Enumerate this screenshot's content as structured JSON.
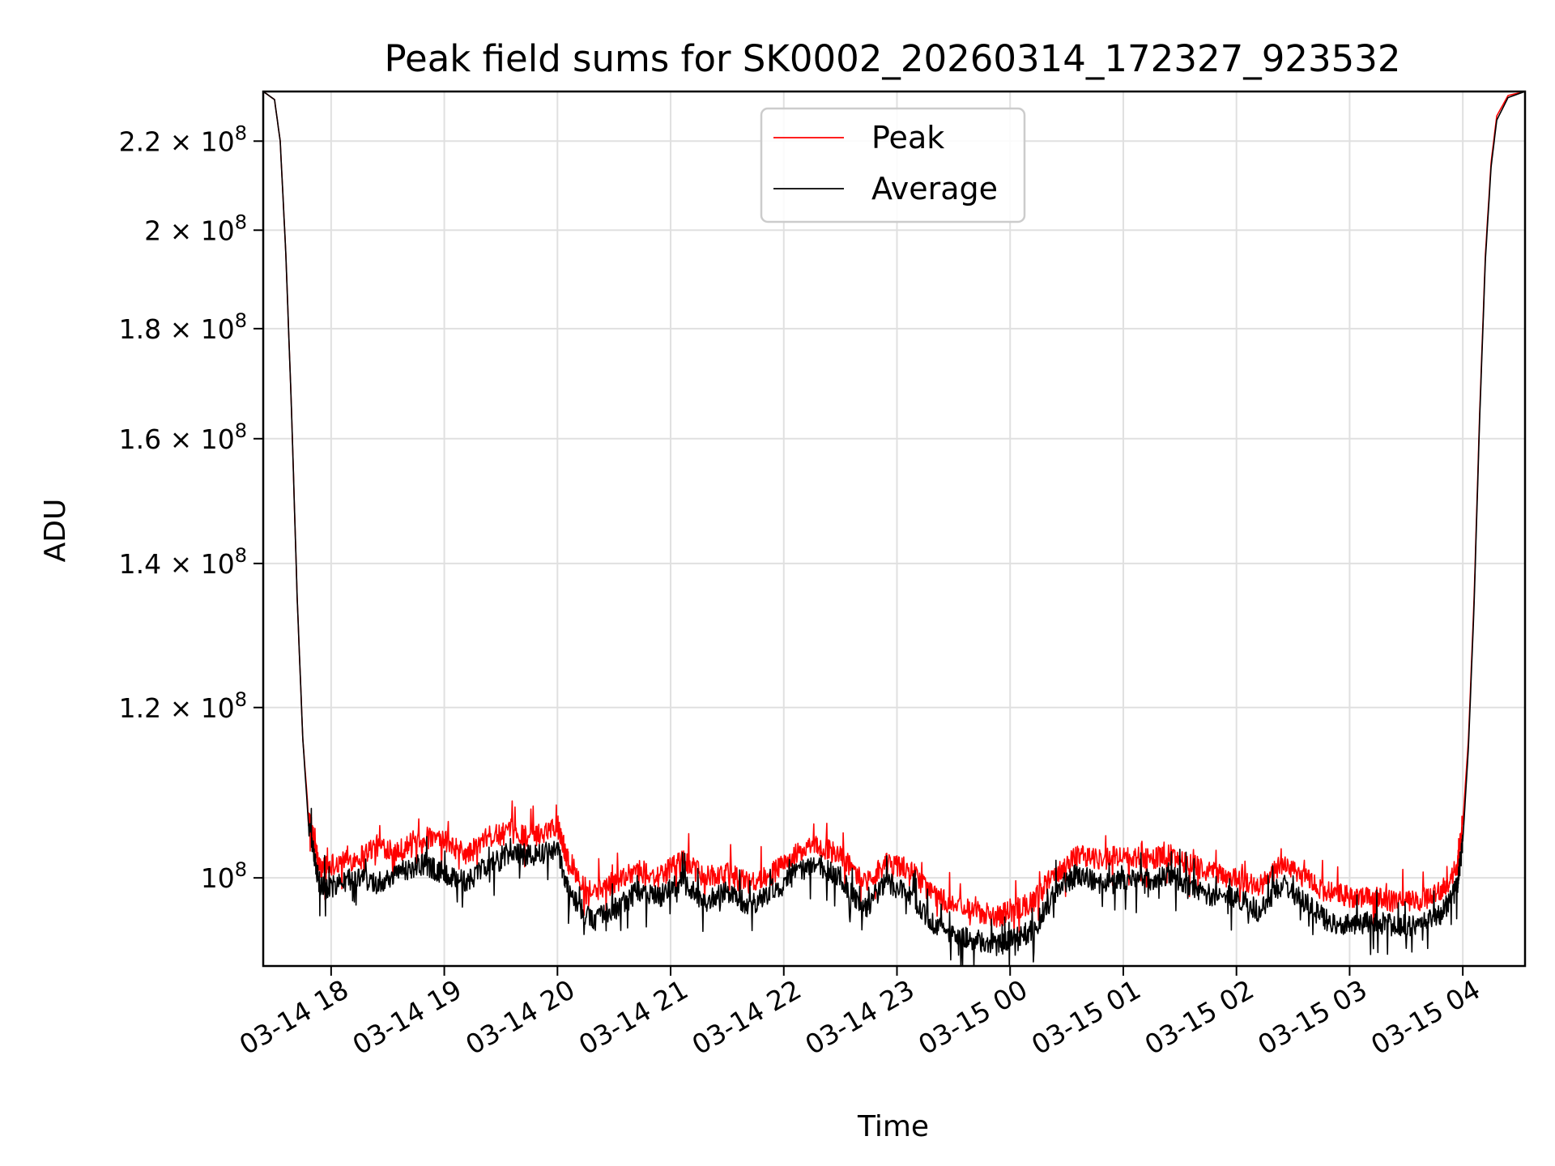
{
  "chart_data": {
    "type": "line",
    "title": "Peak field sums for SK0002_20260314_172327_923532",
    "xlabel": "Time",
    "ylabel": "ADU",
    "y_scale": "log",
    "ylim": [
      91000000,
      232000000
    ],
    "xlim_hours": [
      17.4,
      28.55
    ],
    "grid": true,
    "legend_position": "upper center",
    "x_ticks": [
      {
        "hour": 18,
        "label": "03-14 18"
      },
      {
        "hour": 19,
        "label": "03-14 19"
      },
      {
        "hour": 20,
        "label": "03-14 20"
      },
      {
        "hour": 21,
        "label": "03-14 21"
      },
      {
        "hour": 22,
        "label": "03-14 22"
      },
      {
        "hour": 23,
        "label": "03-14 23"
      },
      {
        "hour": 24,
        "label": "03-15 00"
      },
      {
        "hour": 25,
        "label": "03-15 01"
      },
      {
        "hour": 26,
        "label": "03-15 02"
      },
      {
        "hour": 27,
        "label": "03-15 03"
      },
      {
        "hour": 28,
        "label": "03-15 04"
      }
    ],
    "y_ticks": [
      {
        "value": 100000000,
        "mantissa": "10",
        "exp": "8"
      },
      {
        "value": 120000000,
        "mantissa": "1.2 × 10",
        "exp": "8"
      },
      {
        "value": 140000000,
        "mantissa": "1.4 × 10",
        "exp": "8"
      },
      {
        "value": 160000000,
        "mantissa": "1.6 × 10",
        "exp": "8"
      },
      {
        "value": 180000000,
        "mantissa": "1.8 × 10",
        "exp": "8"
      },
      {
        "value": 200000000,
        "mantissa": "2 × 10",
        "exp": "8"
      },
      {
        "value": 220000000,
        "mantissa": "2.2 × 10",
        "exp": "8"
      }
    ],
    "series": [
      {
        "name": "Peak",
        "color": "#ff0000",
        "points": [
          [
            17.4,
            232000000
          ],
          [
            17.5,
            230000000
          ],
          [
            17.55,
            220000000
          ],
          [
            17.6,
            195000000
          ],
          [
            17.65,
            165000000
          ],
          [
            17.7,
            135000000
          ],
          [
            17.75,
            116000000
          ],
          [
            17.8,
            107000000
          ],
          [
            17.9,
            101000000
          ],
          [
            18.0,
            101500000
          ],
          [
            18.2,
            102000000
          ],
          [
            18.4,
            103500000
          ],
          [
            18.6,
            103000000
          ],
          [
            18.8,
            104500000
          ],
          [
            19.0,
            104000000
          ],
          [
            19.2,
            102500000
          ],
          [
            19.4,
            104500000
          ],
          [
            19.6,
            105000000
          ],
          [
            19.8,
            104500000
          ],
          [
            20.0,
            106000000
          ],
          [
            20.1,
            101500000
          ],
          [
            20.3,
            98500000
          ],
          [
            20.5,
            99500000
          ],
          [
            20.7,
            101000000
          ],
          [
            20.9,
            100000000
          ],
          [
            21.1,
            102000000
          ],
          [
            21.3,
            100000000
          ],
          [
            21.5,
            100500000
          ],
          [
            21.7,
            99500000
          ],
          [
            21.9,
            100500000
          ],
          [
            22.1,
            102500000
          ],
          [
            22.3,
            103500000
          ],
          [
            22.5,
            102500000
          ],
          [
            22.7,
            99500000
          ],
          [
            22.9,
            101500000
          ],
          [
            23.1,
            101000000
          ],
          [
            23.3,
            98500000
          ],
          [
            23.5,
            97000000
          ],
          [
            23.7,
            96500000
          ],
          [
            23.9,
            96000000
          ],
          [
            24.0,
            96500000
          ],
          [
            24.2,
            97500000
          ],
          [
            24.4,
            100500000
          ],
          [
            24.6,
            102500000
          ],
          [
            24.8,
            102000000
          ],
          [
            25.0,
            102500000
          ],
          [
            25.2,
            102000000
          ],
          [
            25.4,
            102500000
          ],
          [
            25.6,
            101500000
          ],
          [
            25.8,
            100500000
          ],
          [
            26.0,
            100000000
          ],
          [
            26.2,
            99000000
          ],
          [
            26.4,
            101500000
          ],
          [
            26.6,
            100000000
          ],
          [
            26.8,
            98500000
          ],
          [
            27.0,
            98000000
          ],
          [
            27.2,
            98000000
          ],
          [
            27.4,
            97500000
          ],
          [
            27.6,
            97500000
          ],
          [
            27.8,
            98500000
          ],
          [
            27.95,
            101000000
          ],
          [
            28.0,
            106000000
          ],
          [
            28.05,
            116000000
          ],
          [
            28.1,
            135000000
          ],
          [
            28.15,
            165000000
          ],
          [
            28.2,
            195000000
          ],
          [
            28.25,
            215000000
          ],
          [
            28.3,
            226000000
          ],
          [
            28.4,
            231000000
          ],
          [
            28.55,
            232000000
          ]
        ]
      },
      {
        "name": "Average",
        "color": "#000000",
        "points": [
          [
            17.4,
            232000000
          ],
          [
            17.5,
            230000000
          ],
          [
            17.55,
            220000000
          ],
          [
            17.6,
            195000000
          ],
          [
            17.65,
            165000000
          ],
          [
            17.7,
            135000000
          ],
          [
            17.75,
            116000000
          ],
          [
            17.8,
            106000000
          ],
          [
            17.9,
            99000000
          ],
          [
            18.0,
            99000000
          ],
          [
            18.2,
            100000000
          ],
          [
            18.4,
            99500000
          ],
          [
            18.6,
            100500000
          ],
          [
            18.8,
            101500000
          ],
          [
            19.0,
            100500000
          ],
          [
            19.2,
            99500000
          ],
          [
            19.4,
            101500000
          ],
          [
            19.6,
            102500000
          ],
          [
            19.8,
            102500000
          ],
          [
            20.0,
            103000000
          ],
          [
            20.1,
            98500000
          ],
          [
            20.3,
            95500000
          ],
          [
            20.5,
            96500000
          ],
          [
            20.7,
            98500000
          ],
          [
            20.9,
            98000000
          ],
          [
            21.1,
            99500000
          ],
          [
            21.3,
            97500000
          ],
          [
            21.5,
            98500000
          ],
          [
            21.7,
            97000000
          ],
          [
            21.9,
            98500000
          ],
          [
            22.1,
            100500000
          ],
          [
            22.3,
            101500000
          ],
          [
            22.5,
            100000000
          ],
          [
            22.7,
            96500000
          ],
          [
            22.9,
            99500000
          ],
          [
            23.1,
            98500000
          ],
          [
            23.3,
            95500000
          ],
          [
            23.5,
            94000000
          ],
          [
            23.7,
            93500000
          ],
          [
            23.9,
            93000000
          ],
          [
            24.0,
            93500000
          ],
          [
            24.2,
            94500000
          ],
          [
            24.4,
            98500000
          ],
          [
            24.6,
            100500000
          ],
          [
            24.8,
            99500000
          ],
          [
            25.0,
            100000000
          ],
          [
            25.2,
            99500000
          ],
          [
            25.4,
            100500000
          ],
          [
            25.6,
            99000000
          ],
          [
            25.8,
            98000000
          ],
          [
            26.0,
            98000000
          ],
          [
            26.2,
            96500000
          ],
          [
            26.4,
            99500000
          ],
          [
            26.6,
            97500000
          ],
          [
            26.8,
            95500000
          ],
          [
            27.0,
            95000000
          ],
          [
            27.2,
            95500000
          ],
          [
            27.4,
            95000000
          ],
          [
            27.6,
            95000000
          ],
          [
            27.8,
            96000000
          ],
          [
            27.95,
            99000000
          ],
          [
            28.0,
            104000000
          ],
          [
            28.05,
            115000000
          ],
          [
            28.1,
            134000000
          ],
          [
            28.15,
            164000000
          ],
          [
            28.2,
            194000000
          ],
          [
            28.25,
            214000000
          ],
          [
            28.3,
            225000000
          ],
          [
            28.4,
            230500000
          ],
          [
            28.55,
            232000000
          ]
        ]
      }
    ]
  }
}
